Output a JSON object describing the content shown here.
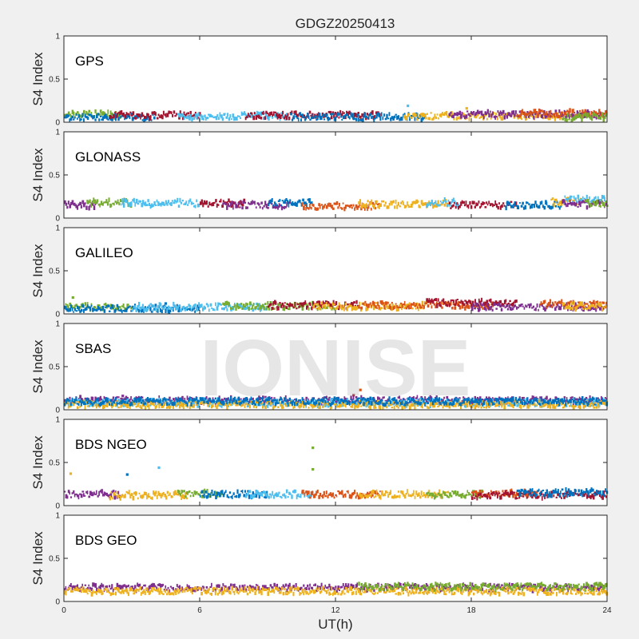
{
  "title": "GDGZ20250413",
  "watermark": "IONISE",
  "chart_data": {
    "type": "scatter",
    "xlabel": "UT(h)",
    "ylabel": "S4 Index",
    "xlim": [
      0,
      24
    ],
    "ylim": [
      0,
      1
    ],
    "xticks": [
      0,
      6,
      12,
      18,
      24
    ],
    "yticks": [
      0,
      0.5,
      1
    ],
    "ytick_labels": [
      "0",
      "0.5",
      "1"
    ],
    "grid": false,
    "palette": [
      "#0072BD",
      "#D95319",
      "#EDB120",
      "#7E2F8E",
      "#77AC30",
      "#4DBEEE",
      "#A2142F"
    ],
    "panels": [
      {
        "label": "GPS",
        "bands": [
          {
            "start": 0,
            "end": 2.5,
            "level": 0.09,
            "color": "#77AC30"
          },
          {
            "start": 0,
            "end": 4,
            "level": 0.06,
            "color": "#0072BD"
          },
          {
            "start": 2,
            "end": 6,
            "level": 0.08,
            "color": "#A2142F"
          },
          {
            "start": 5,
            "end": 10,
            "level": 0.07,
            "color": "#4DBEEE"
          },
          {
            "start": 8,
            "end": 14,
            "level": 0.08,
            "color": "#A2142F"
          },
          {
            "start": 10,
            "end": 16,
            "level": 0.06,
            "color": "#0072BD"
          },
          {
            "start": 15,
            "end": 22,
            "level": 0.07,
            "color": "#EDB120"
          },
          {
            "start": 17,
            "end": 24,
            "level": 0.09,
            "color": "#7E2F8E"
          },
          {
            "start": 20,
            "end": 24,
            "level": 0.1,
            "color": "#D95319"
          },
          {
            "start": 22,
            "end": 24,
            "level": 0.06,
            "color": "#77AC30"
          }
        ],
        "outliers": [
          {
            "x": 15.2,
            "y": 0.19,
            "color": "#4DBEEE"
          },
          {
            "x": 17.8,
            "y": 0.16,
            "color": "#EDB120"
          }
        ]
      },
      {
        "label": "GLONASS",
        "bands": [
          {
            "start": 0,
            "end": 1.5,
            "level": 0.15,
            "color": "#7E2F8E"
          },
          {
            "start": 1,
            "end": 3,
            "level": 0.18,
            "color": "#77AC30"
          },
          {
            "start": 2.5,
            "end": 6,
            "level": 0.17,
            "color": "#4DBEEE"
          },
          {
            "start": 6,
            "end": 8,
            "level": 0.17,
            "color": "#A2142F"
          },
          {
            "start": 7,
            "end": 10,
            "level": 0.15,
            "color": "#7E2F8E"
          },
          {
            "start": 9,
            "end": 11,
            "level": 0.18,
            "color": "#0072BD"
          },
          {
            "start": 10.5,
            "end": 14,
            "level": 0.14,
            "color": "#D95319"
          },
          {
            "start": 13,
            "end": 17,
            "level": 0.16,
            "color": "#EDB120"
          },
          {
            "start": 16,
            "end": 17.5,
            "level": 0.18,
            "color": "#4DBEEE"
          },
          {
            "start": 17,
            "end": 20,
            "level": 0.15,
            "color": "#A2142F"
          },
          {
            "start": 19.5,
            "end": 22,
            "level": 0.15,
            "color": "#0072BD"
          },
          {
            "start": 21.5,
            "end": 23,
            "level": 0.19,
            "color": "#EDB120"
          },
          {
            "start": 22,
            "end": 24,
            "level": 0.22,
            "color": "#4DBEEE"
          },
          {
            "start": 22,
            "end": 24,
            "level": 0.16,
            "color": "#7E2F8E"
          },
          {
            "start": 23,
            "end": 24,
            "level": 0.17,
            "color": "#77AC30"
          }
        ],
        "outliers": []
      },
      {
        "label": "GALILEO",
        "bands": [
          {
            "start": 0,
            "end": 3,
            "level": 0.08,
            "color": "#77AC30"
          },
          {
            "start": 0,
            "end": 6,
            "level": 0.06,
            "color": "#0072BD"
          },
          {
            "start": 3,
            "end": 9,
            "level": 0.08,
            "color": "#4DBEEE"
          },
          {
            "start": 7,
            "end": 12,
            "level": 0.09,
            "color": "#77AC30"
          },
          {
            "start": 9,
            "end": 13,
            "level": 0.1,
            "color": "#A2142F"
          },
          {
            "start": 11,
            "end": 16,
            "level": 0.09,
            "color": "#EDB120"
          },
          {
            "start": 13,
            "end": 19,
            "level": 0.1,
            "color": "#D95319"
          },
          {
            "start": 16,
            "end": 20,
            "level": 0.13,
            "color": "#A2142F"
          },
          {
            "start": 18,
            "end": 24,
            "level": 0.08,
            "color": "#7E2F8E"
          },
          {
            "start": 21,
            "end": 24,
            "level": 0.11,
            "color": "#D95319"
          },
          {
            "start": 22,
            "end": 24,
            "level": 0.09,
            "color": "#EDB120"
          }
        ],
        "outliers": [
          {
            "x": 0.4,
            "y": 0.19,
            "color": "#77AC30"
          },
          {
            "x": 4.5,
            "y": 0.12,
            "color": "#0072BD"
          }
        ]
      },
      {
        "label": "SBAS",
        "bands": [
          {
            "start": 0,
            "end": 24,
            "level": 0.11,
            "color": "#7E2F8E"
          },
          {
            "start": 0,
            "end": 24,
            "level": 0.08,
            "color": "#4DBEEE"
          },
          {
            "start": 0,
            "end": 24,
            "level": 0.06,
            "color": "#EDB120"
          },
          {
            "start": 0,
            "end": 24,
            "level": 0.095,
            "color": "#0072BD"
          }
        ],
        "outliers": [
          {
            "x": 13.1,
            "y": 0.23,
            "color": "#D95319"
          },
          {
            "x": 12.8,
            "y": 0.17,
            "color": "#A2142F"
          },
          {
            "x": 2.6,
            "y": 0.16,
            "color": "#7E2F8E"
          }
        ]
      },
      {
        "label": "BDS NGEO",
        "bands": [
          {
            "start": 0,
            "end": 2.5,
            "level": 0.13,
            "color": "#7E2F8E"
          },
          {
            "start": 2,
            "end": 5.5,
            "level": 0.12,
            "color": "#EDB120"
          },
          {
            "start": 5,
            "end": 7,
            "level": 0.14,
            "color": "#77AC30"
          },
          {
            "start": 6,
            "end": 9,
            "level": 0.13,
            "color": "#0072BD"
          },
          {
            "start": 8,
            "end": 11,
            "level": 0.13,
            "color": "#4DBEEE"
          },
          {
            "start": 10.5,
            "end": 14,
            "level": 0.13,
            "color": "#D95319"
          },
          {
            "start": 13,
            "end": 17,
            "level": 0.13,
            "color": "#EDB120"
          },
          {
            "start": 16,
            "end": 18.5,
            "level": 0.13,
            "color": "#77AC30"
          },
          {
            "start": 18,
            "end": 21,
            "level": 0.14,
            "color": "#D95319"
          },
          {
            "start": 18,
            "end": 24,
            "level": 0.12,
            "color": "#A2142F"
          },
          {
            "start": 20,
            "end": 24,
            "level": 0.15,
            "color": "#0072BD"
          }
        ],
        "outliers": [
          {
            "x": 0.3,
            "y": 0.37,
            "color": "#EDB120"
          },
          {
            "x": 2.8,
            "y": 0.36,
            "color": "#0072BD"
          },
          {
            "x": 4.2,
            "y": 0.44,
            "color": "#4DBEEE"
          },
          {
            "x": 11.0,
            "y": 0.67,
            "color": "#77AC30"
          },
          {
            "x": 11.0,
            "y": 0.42,
            "color": "#77AC30"
          }
        ]
      },
      {
        "label": "BDS GEO",
        "bands": [
          {
            "start": 0,
            "end": 24,
            "level": 0.16,
            "color": "#7E2F8E"
          },
          {
            "start": 0,
            "end": 24,
            "level": 0.12,
            "color": "#EDB120"
          },
          {
            "start": 13,
            "end": 24,
            "level": 0.17,
            "color": "#77AC30"
          }
        ],
        "outliers": []
      }
    ]
  }
}
